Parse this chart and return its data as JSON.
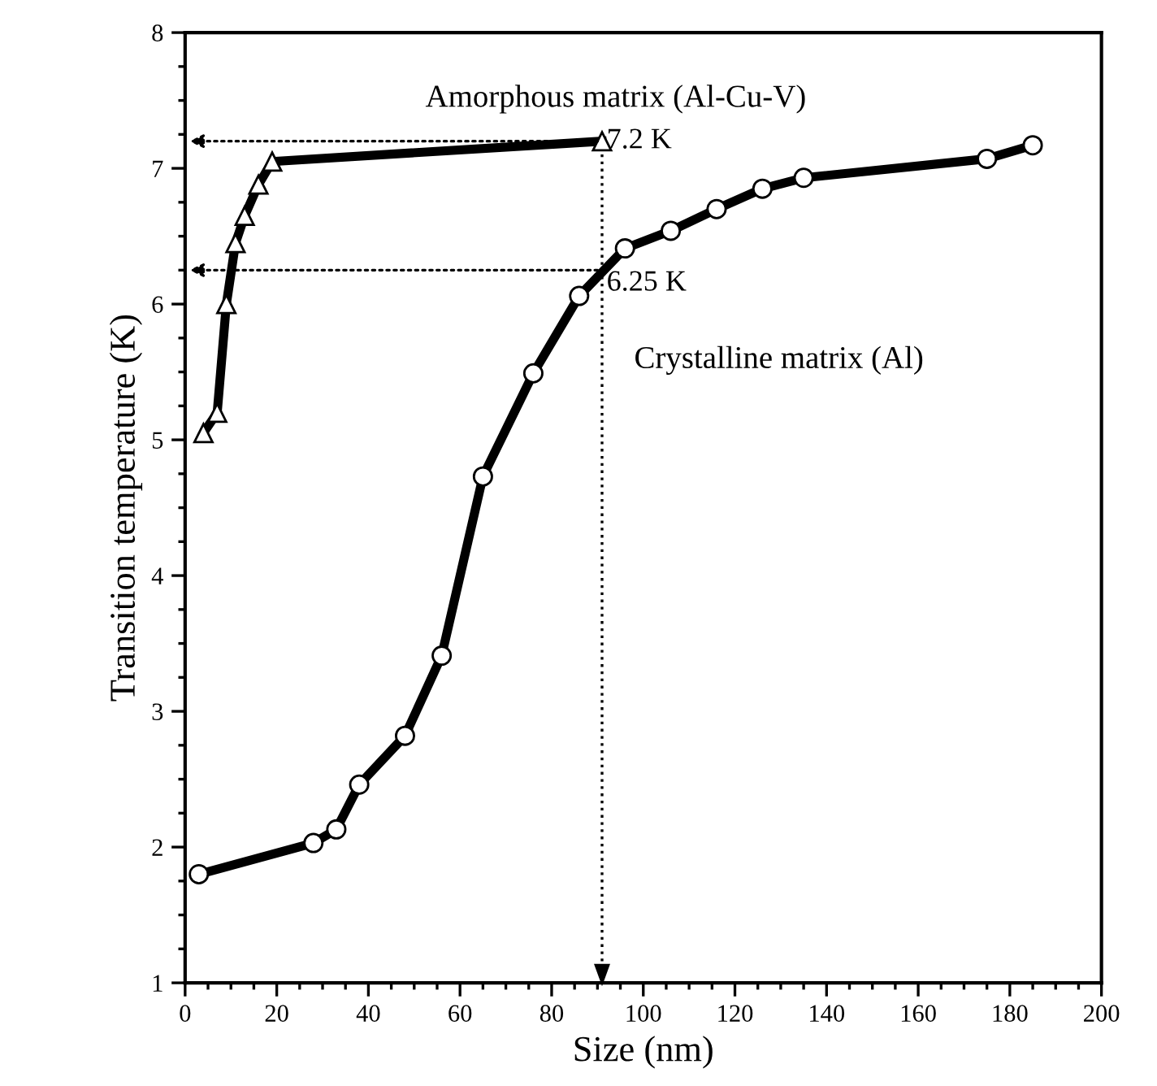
{
  "chart_data": {
    "type": "line",
    "xlabel": "Size (nm)",
    "ylabel": "Transition temperature (K)",
    "xlim": [
      0,
      200
    ],
    "xticks": [
      0,
      20,
      40,
      60,
      80,
      100,
      120,
      140,
      160,
      180,
      200
    ],
    "ylim": [
      1,
      8
    ],
    "yticks": [
      1,
      2,
      3,
      4,
      5,
      6,
      7,
      8
    ],
    "grid": false,
    "legend": false,
    "series": [
      {
        "name": "Amorphous matrix (Al-Cu-V)",
        "color": "#000000",
        "marker": "triangle",
        "x": [
          4,
          7,
          9,
          11,
          13,
          16,
          19,
          91
        ],
        "values": [
          5.05,
          5.2,
          6.0,
          6.45,
          6.65,
          6.88,
          7.05,
          7.2
        ]
      },
      {
        "name": "Crystalline matrix (Al)",
        "color": "#000000",
        "marker": "circle",
        "x": [
          3,
          28,
          33,
          38,
          48,
          56,
          65,
          76,
          86,
          96,
          106,
          116,
          126,
          135,
          175,
          185
        ],
        "values": [
          1.8,
          2.03,
          2.13,
          2.46,
          2.82,
          3.41,
          4.73,
          5.49,
          6.06,
          6.41,
          6.54,
          6.7,
          6.85,
          6.93,
          7.07,
          7.17
        ]
      }
    ],
    "ref_lines": [
      {
        "axis": "x",
        "value": 91,
        "line_style": "dotted",
        "color": "#000000"
      }
    ],
    "annotations": [
      {
        "text": "7.2 K",
        "x": 91,
        "y": 7.2
      },
      {
        "text": "6.25 K",
        "x": 91,
        "y": 6.25
      }
    ]
  }
}
